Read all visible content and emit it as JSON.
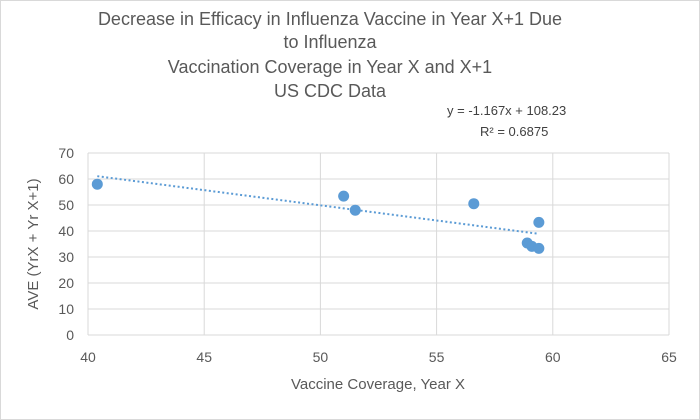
{
  "chart_data": {
    "type": "scatter",
    "title_lines": [
      "Decrease in Efficacy in Influenza Vaccine in Year X+1 Due",
      "to Influenza",
      "Vaccination Coverage  in Year X and X+1",
      "US CDC Data"
    ],
    "xlabel": "Vaccine Coverage, Year X",
    "ylabel": "AVE (YrX + Yr X+1)",
    "xlim": [
      40,
      65
    ],
    "ylim": [
      0,
      70
    ],
    "xticks": [
      40,
      45,
      50,
      55,
      60,
      65
    ],
    "yticks": [
      0,
      10,
      20,
      30,
      40,
      50,
      60,
      70
    ],
    "grid": true,
    "points": [
      {
        "x": 40.4,
        "y": 58.0
      },
      {
        "x": 51.0,
        "y": 53.4
      },
      {
        "x": 51.5,
        "y": 48.0
      },
      {
        "x": 56.6,
        "y": 50.5
      },
      {
        "x": 59.4,
        "y": 43.3
      },
      {
        "x": 58.9,
        "y": 35.4
      },
      {
        "x": 59.1,
        "y": 34.1
      },
      {
        "x": 59.4,
        "y": 33.3
      }
    ],
    "trendline": {
      "type": "linear",
      "slope": -1.167,
      "intercept": 108.23,
      "x_range": [
        40.4,
        59.4
      ],
      "equation": "y = -1.167x + 108.23",
      "r2": "R² = 0.6875"
    },
    "colors": {
      "marker": "#5b9bd5",
      "grid": "#d9d9d9"
    }
  }
}
